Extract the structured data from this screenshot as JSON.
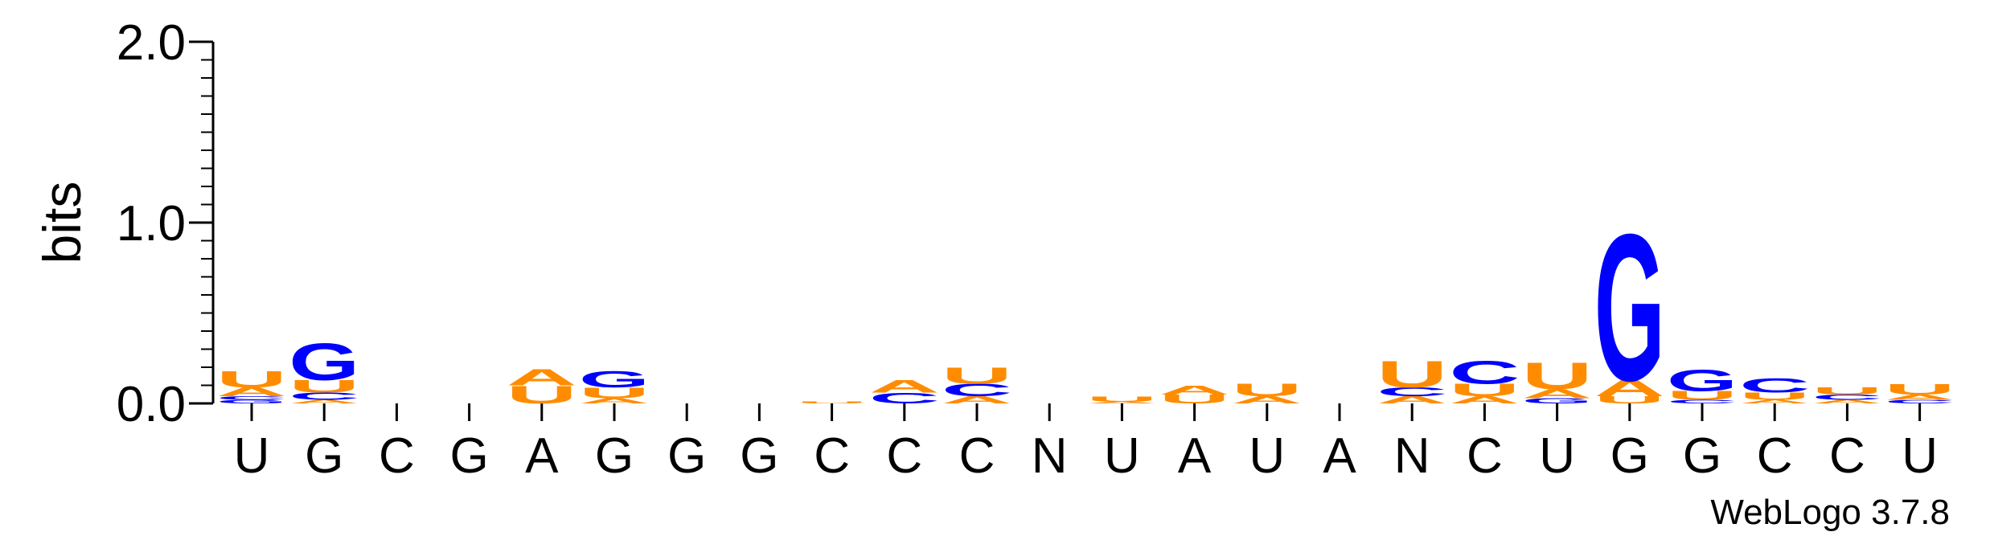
{
  "chart_data": {
    "type": "sequence-logo",
    "ylabel": "bits",
    "ylim": [
      0,
      2.0
    ],
    "yticks": [
      "0.0",
      "1.0",
      "2.0"
    ],
    "credit": "WebLogo 3.7.8",
    "colors": {
      "A": "#FF8C00",
      "U": "#FF8C00",
      "G": "#0000FF",
      "C": "#0000FF"
    },
    "positions": [
      {
        "label": "U",
        "stack": [
          {
            "letter": "G",
            "bits": 0.02
          },
          {
            "letter": "C",
            "bits": 0.02
          },
          {
            "letter": "A",
            "bits": 0.05
          },
          {
            "letter": "U",
            "bits": 0.09
          }
        ]
      },
      {
        "label": "G",
        "stack": [
          {
            "letter": "A",
            "bits": 0.02
          },
          {
            "letter": "C",
            "bits": 0.04
          },
          {
            "letter": "U",
            "bits": 0.07
          },
          {
            "letter": "G",
            "bits": 0.21
          }
        ]
      },
      {
        "label": "C",
        "stack": []
      },
      {
        "label": "G",
        "stack": []
      },
      {
        "label": "A",
        "stack": [
          {
            "letter": "U",
            "bits": 0.1
          },
          {
            "letter": "A",
            "bits": 0.09
          }
        ]
      },
      {
        "label": "G",
        "stack": [
          {
            "letter": "A",
            "bits": 0.03
          },
          {
            "letter": "U",
            "bits": 0.06
          },
          {
            "letter": "G",
            "bits": 0.09
          }
        ]
      },
      {
        "label": "G",
        "stack": []
      },
      {
        "label": "G",
        "stack": []
      },
      {
        "label": "C",
        "stack": [
          {
            "letter": "U",
            "bits": 0.01
          }
        ]
      },
      {
        "label": "C",
        "stack": [
          {
            "letter": "C",
            "bits": 0.06
          },
          {
            "letter": "A",
            "bits": 0.07
          }
        ]
      },
      {
        "label": "C",
        "stack": [
          {
            "letter": "A",
            "bits": 0.04
          },
          {
            "letter": "C",
            "bits": 0.07
          },
          {
            "letter": "U",
            "bits": 0.09
          }
        ]
      },
      {
        "label": "N",
        "stack": []
      },
      {
        "label": "U",
        "stack": [
          {
            "letter": "A",
            "bits": 0.01
          },
          {
            "letter": "U",
            "bits": 0.03
          }
        ]
      },
      {
        "label": "A",
        "stack": [
          {
            "letter": "U",
            "bits": 0.05
          },
          {
            "letter": "A",
            "bits": 0.05
          }
        ]
      },
      {
        "label": "U",
        "stack": [
          {
            "letter": "A",
            "bits": 0.04
          },
          {
            "letter": "U",
            "bits": 0.07
          }
        ]
      },
      {
        "label": "A",
        "stack": []
      },
      {
        "label": "N",
        "stack": [
          {
            "letter": "A",
            "bits": 0.04
          },
          {
            "letter": "C",
            "bits": 0.05
          },
          {
            "letter": "U",
            "bits": 0.15
          }
        ]
      },
      {
        "label": "C",
        "stack": [
          {
            "letter": "A",
            "bits": 0.04
          },
          {
            "letter": "U",
            "bits": 0.07
          },
          {
            "letter": "C",
            "bits": 0.13
          }
        ]
      },
      {
        "label": "U",
        "stack": [
          {
            "letter": "G",
            "bits": 0.03
          },
          {
            "letter": "A",
            "bits": 0.05
          },
          {
            "letter": "U",
            "bits": 0.15
          }
        ]
      },
      {
        "label": "G",
        "stack": [
          {
            "letter": "U",
            "bits": 0.04
          },
          {
            "letter": "A",
            "bits": 0.09
          },
          {
            "letter": "G",
            "bits": 0.83
          }
        ]
      },
      {
        "label": "G",
        "stack": [
          {
            "letter": "C",
            "bits": 0.02
          },
          {
            "letter": "U",
            "bits": 0.05
          },
          {
            "letter": "G",
            "bits": 0.12
          }
        ]
      },
      {
        "label": "C",
        "stack": [
          {
            "letter": "A",
            "bits": 0.02
          },
          {
            "letter": "U",
            "bits": 0.04
          },
          {
            "letter": "C",
            "bits": 0.08
          }
        ]
      },
      {
        "label": "C",
        "stack": [
          {
            "letter": "A",
            "bits": 0.02
          },
          {
            "letter": "C",
            "bits": 0.03
          },
          {
            "letter": "U",
            "bits": 0.04
          }
        ]
      },
      {
        "label": "U",
        "stack": [
          {
            "letter": "C",
            "bits": 0.02
          },
          {
            "letter": "A",
            "bits": 0.03
          },
          {
            "letter": "U",
            "bits": 0.06
          }
        ]
      }
    ]
  }
}
